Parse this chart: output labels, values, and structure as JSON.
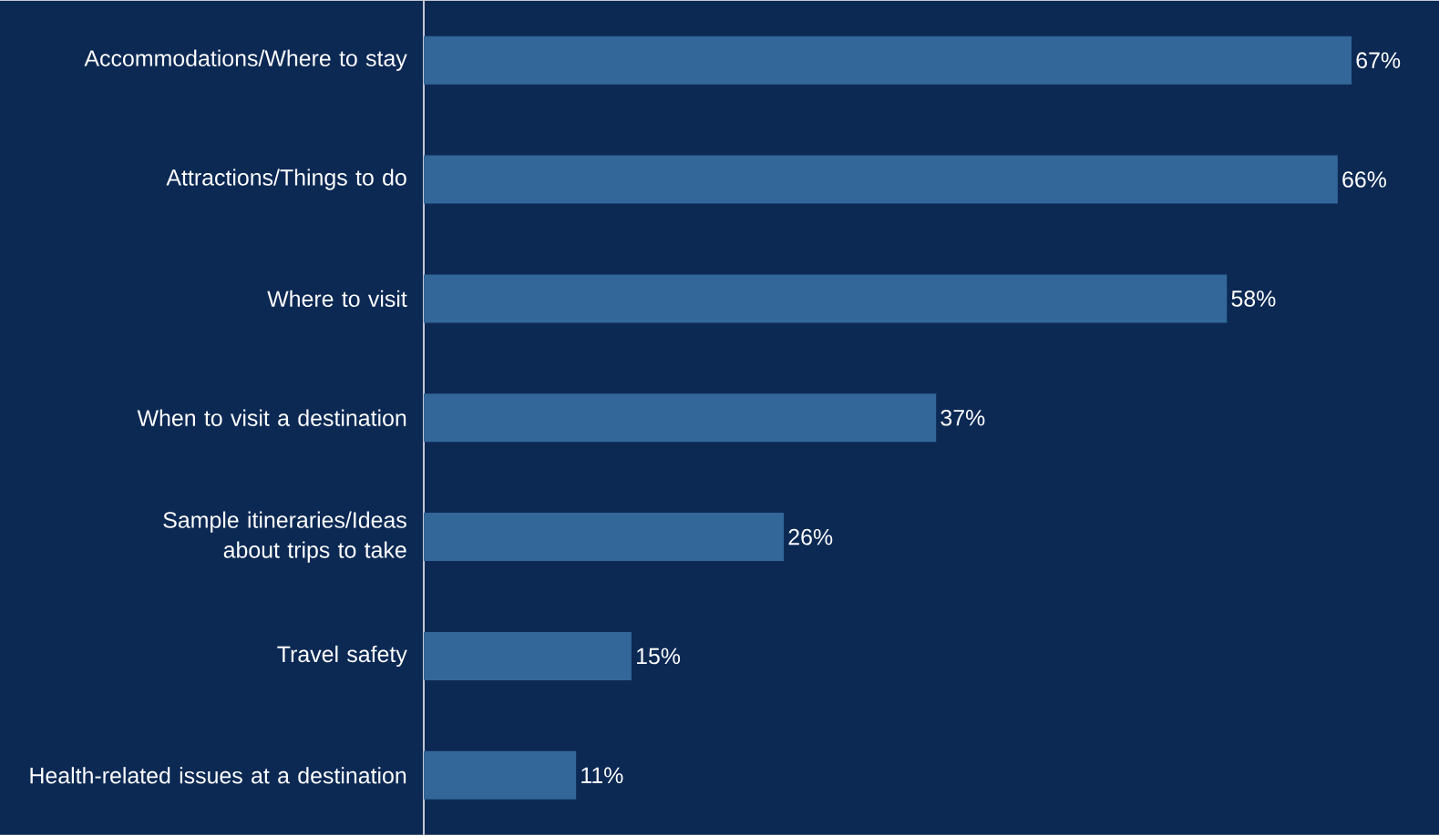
{
  "chart_data": {
    "type": "bar",
    "orientation": "horizontal",
    "categories": [
      "Accommodations/Where to stay",
      "Attractions/Things to do",
      "Where to visit",
      "When to visit a destination",
      "Sample itineraries/Ideas about trips to take",
      "Travel safety",
      "Health-related issues at a destination"
    ],
    "values": [
      67,
      66,
      58,
      37,
      26,
      15,
      11
    ],
    "value_labels": [
      "67%",
      "66%",
      "58%",
      "37%",
      "26%",
      "15%",
      "11%"
    ],
    "color": "#336699"
  }
}
